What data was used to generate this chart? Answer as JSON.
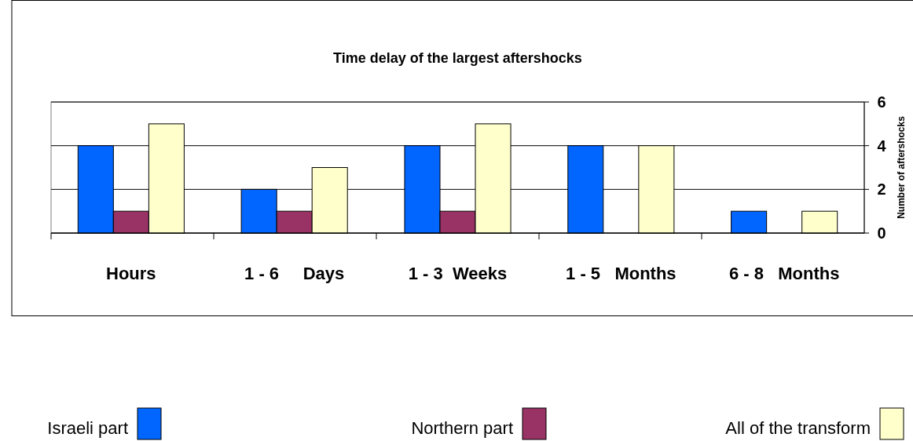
{
  "chart_data": {
    "type": "bar",
    "title": "Time delay of the largest aftershocks",
    "ylabel": "Number of aftershocks",
    "categories": [
      "Hours",
      "1 - 6     Days",
      "1 - 3  Weeks",
      "1 - 5   Months",
      "6 - 8   Months"
    ],
    "series": [
      {
        "name": "Israeli part",
        "color": "#0066ff",
        "values": [
          4,
          2,
          4,
          4,
          1
        ]
      },
      {
        "name": "Northern part",
        "color": "#993366",
        "values": [
          1,
          1,
          1,
          0,
          0
        ]
      },
      {
        "name": "All of the transform",
        "color": "#ffffcc",
        "values": [
          5,
          3,
          5,
          4,
          1
        ]
      }
    ],
    "ylim": [
      0,
      6
    ],
    "yticks": [
      0,
      2,
      4,
      6
    ],
    "grid": "y",
    "legend": "bottom"
  }
}
